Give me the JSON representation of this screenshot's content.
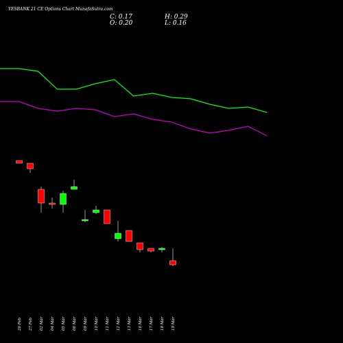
{
  "title": "YESBANK 21 CE Options Chart MunafaSutra.com",
  "ohlc": {
    "close": "C: 0.17",
    "open": "O: 0.20",
    "high": "H: 0.29",
    "low": "L: 0.16"
  },
  "colors": {
    "background": "#000000",
    "up": "#00ff00",
    "down": "#ff0000",
    "line_upper": "#00ff00",
    "line_lower": "#cc00cc",
    "text": "#ffffff"
  },
  "chart_data": {
    "type": "candlestick",
    "title": "YESBANK 21 CE Options Chart MunafaSutra.com",
    "xlabel": "",
    "ylabel": "",
    "grid": false,
    "categories": [
      "26 Feb",
      "27 Feb",
      "02 Mar",
      "04 Mar",
      "05 Mar",
      "06 Mar",
      "09 Mar",
      "10 Mar",
      "11 Mar",
      "12 Mar",
      "13 Mar",
      "16 Mar",
      "17 Mar",
      "18 Mar",
      "19 Mar"
    ],
    "candles": [
      {
        "open": 0.93,
        "high": 0.93,
        "low": 0.91,
        "close": 0.91,
        "color": "down"
      },
      {
        "open": 0.91,
        "high": 0.91,
        "low": 0.84,
        "close": 0.87,
        "color": "down"
      },
      {
        "open": 0.72,
        "high": 0.74,
        "low": 0.55,
        "close": 0.62,
        "color": "down"
      },
      {
        "open": 0.62,
        "high": 0.66,
        "low": 0.58,
        "close": 0.61,
        "color": "down"
      },
      {
        "open": 0.61,
        "high": 0.71,
        "low": 0.55,
        "close": 0.69,
        "color": "up"
      },
      {
        "open": 0.74,
        "high": 0.79,
        "low": 0.72,
        "close": 0.72,
        "color": "up"
      },
      {
        "open": 0.5,
        "high": 0.57,
        "low": 0.48,
        "close": 0.5,
        "color": "up"
      },
      {
        "open": 0.55,
        "high": 0.6,
        "low": 0.54,
        "close": 0.57,
        "color": "up"
      },
      {
        "open": 0.57,
        "high": 0.57,
        "low": 0.47,
        "close": 0.47,
        "color": "down"
      },
      {
        "open": 0.36,
        "high": 0.49,
        "low": 0.34,
        "close": 0.4,
        "color": "up"
      },
      {
        "open": 0.42,
        "high": 0.42,
        "low": 0.34,
        "close": 0.34,
        "color": "down"
      },
      {
        "open": 0.33,
        "high": 0.33,
        "low": 0.26,
        "close": 0.28,
        "color": "down"
      },
      {
        "open": 0.29,
        "high": 0.29,
        "low": 0.26,
        "close": 0.27,
        "color": "down"
      },
      {
        "open": 0.29,
        "high": 0.3,
        "low": 0.26,
        "close": 0.28,
        "color": "up"
      },
      {
        "open": 0.2,
        "high": 0.29,
        "low": 0.16,
        "close": 0.17,
        "color": "down"
      }
    ],
    "lines": [
      {
        "color": "#00ff00",
        "values": [
          1.6,
          1.6,
          1.58,
          1.45,
          1.45,
          1.49,
          1.52,
          1.4,
          1.42,
          1.39,
          1.38,
          1.34,
          1.31,
          1.32,
          1.28
        ]
      },
      {
        "color": "#cc00cc",
        "values": [
          1.36,
          1.36,
          1.31,
          1.29,
          1.31,
          1.3,
          1.25,
          1.27,
          1.23,
          1.21,
          1.16,
          1.13,
          1.15,
          1.18,
          1.11
        ]
      }
    ],
    "ylim": [
      -0.4,
      1.9
    ]
  }
}
